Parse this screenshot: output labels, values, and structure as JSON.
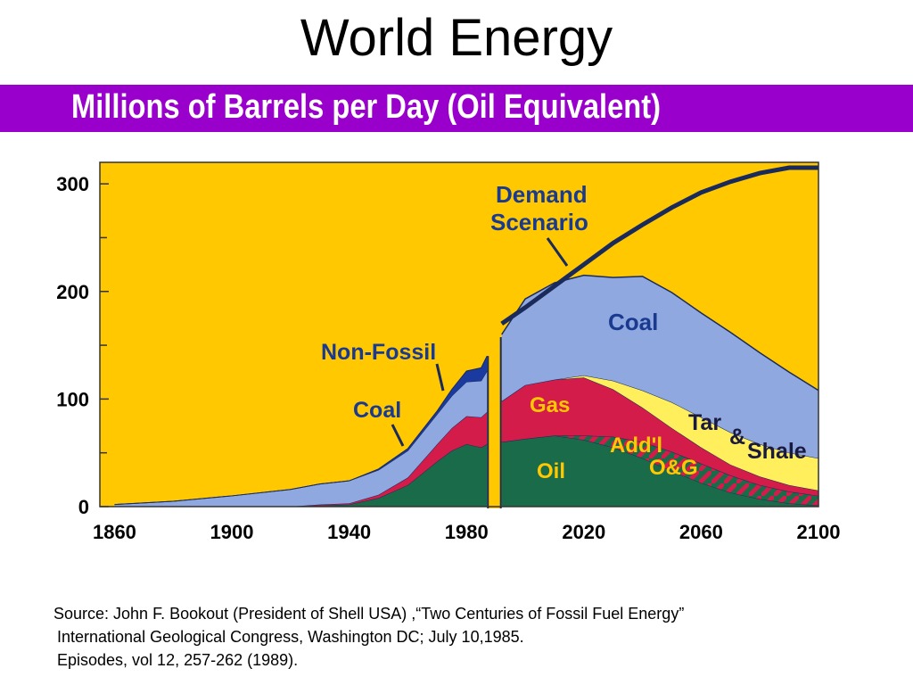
{
  "slide": {
    "title": "World Energy",
    "subtitle": "Millions of Barrels per Day (Oil Equivalent)",
    "subtitle_bar_color": "#9900cc",
    "source_lines": [
      "Source: John F. Bookout (President of Shell USA) ,“Two Centuries of Fossil Fuel Energy”",
      "International Geological Congress, Washington DC;  July 10,1985.",
      "Episodes, vol 12, 257-262 (1989)."
    ]
  },
  "chart_data": {
    "type": "area",
    "stacked": true,
    "title": "World Energy",
    "subtitle": "Millions of Barrels per Day (Oil Equivalent)",
    "xlabel": "",
    "ylabel": "",
    "xlim": [
      1855,
      2100
    ],
    "ylim": [
      0,
      320
    ],
    "x_ticks": [
      1860,
      1900,
      1940,
      1980,
      2020,
      2060,
      2100
    ],
    "y_ticks": [
      0,
      100,
      200,
      300
    ],
    "grid": false,
    "background_color": "#ffc800",
    "historical": {
      "x": [
        1860,
        1880,
        1900,
        1920,
        1930,
        1940,
        1950,
        1960,
        1970,
        1975,
        1980,
        1985,
        1987
      ],
      "series": [
        {
          "name": "Oil",
          "color": "#1a6b4a",
          "values": [
            0,
            0,
            0,
            0,
            1,
            2,
            8,
            20,
            42,
            52,
            58,
            55,
            58
          ]
        },
        {
          "name": "Gas",
          "color": "#d41c4a",
          "values": [
            0,
            0,
            0,
            0,
            1,
            1,
            3,
            7,
            16,
            21,
            26,
            28,
            30
          ]
        },
        {
          "name": "Coal",
          "color": "#8fa8e0",
          "values": [
            2,
            5,
            10,
            16,
            19,
            21,
            23,
            25,
            28,
            30,
            32,
            34,
            38
          ]
        },
        {
          "name": "Non-Fossil",
          "color": "#1a3aa0",
          "values": [
            0,
            0,
            0,
            0,
            0,
            0,
            1,
            2,
            3,
            6,
            10,
            12,
            14
          ]
        }
      ]
    },
    "projection": {
      "x": [
        1992,
        2000,
        2010,
        2020,
        2030,
        2040,
        2050,
        2060,
        2070,
        2080,
        2090,
        2100
      ],
      "series": [
        {
          "name": "Oil",
          "color": "#1a6b4a",
          "values": [
            60,
            63,
            66,
            62,
            55,
            45,
            33,
            22,
            13,
            7,
            3,
            1
          ]
        },
        {
          "name": "Add'l O&G",
          "color": "#1a6b4a",
          "hatch": "#d41c4a",
          "values": [
            0,
            0,
            0,
            4,
            10,
            15,
            18,
            18,
            16,
            13,
            11,
            9
          ]
        },
        {
          "name": "Gas",
          "color": "#d41c4a",
          "values": [
            38,
            50,
            52,
            54,
            44,
            32,
            22,
            15,
            10,
            8,
            6,
            5
          ]
        },
        {
          "name": "Tar & Shale",
          "color": "#ffef5c",
          "values": [
            0,
            0,
            0,
            2,
            8,
            16,
            24,
            28,
            30,
            30,
            30,
            30
          ]
        },
        {
          "name": "Coal",
          "color": "#8fa8e0",
          "values": [
            62,
            80,
            90,
            93,
            96,
            106,
            102,
            97,
            93,
            85,
            75,
            63
          ]
        }
      ],
      "demand_scenario": [
        170,
        185,
        205,
        225,
        245,
        262,
        278,
        292,
        302,
        310,
        315,
        315
      ]
    },
    "annotations": [
      "Demand Scenario",
      "Non-Fossil",
      "Coal",
      "Coal",
      "Gas",
      "Tar",
      "&",
      "Shale",
      "Add'l",
      "O&G",
      "Oil"
    ]
  }
}
